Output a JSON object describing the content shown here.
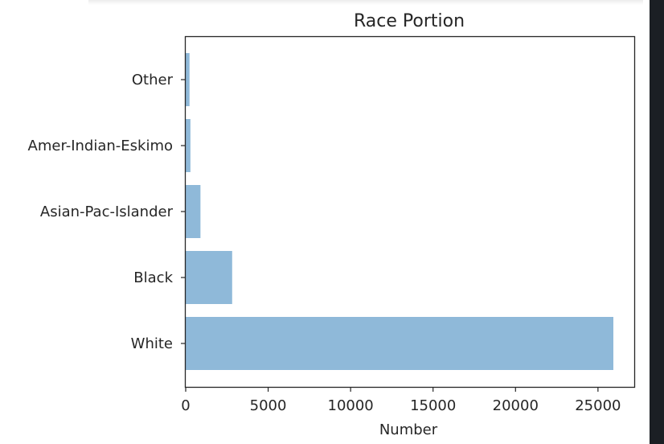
{
  "chart_data": {
    "type": "bar",
    "orientation": "horizontal",
    "title": "Race Portion",
    "xlabel": "Number",
    "ylabel": "",
    "categories": [
      "White",
      "Black",
      "Asian-Pac-Islander",
      "Amer-Indian-Eskimo",
      "Other"
    ],
    "values": [
      25933,
      2817,
      895,
      286,
      231
    ],
    "xlim": [
      0,
      27200
    ],
    "xticks": [
      0,
      5000,
      10000,
      15000,
      20000,
      25000
    ],
    "xtick_labels": [
      "0",
      "5000",
      "10000",
      "15000",
      "20000",
      "25000"
    ],
    "bar_color": "#8fb9d9",
    "grid": false,
    "legend": "none"
  }
}
